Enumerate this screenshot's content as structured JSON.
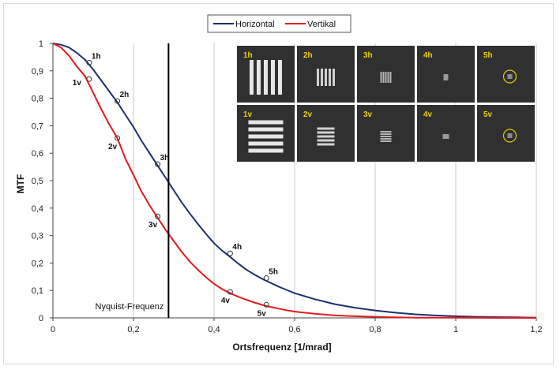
{
  "chart_data": {
    "type": "line",
    "xlabel": "Ortsfrequenz [1/mrad]",
    "ylabel": "MTF",
    "xlim": [
      0,
      1.2
    ],
    "ylim": [
      0,
      1
    ],
    "x_ticks": [
      "0",
      "0,2",
      "0,4",
      "0,6",
      "0,8",
      "1",
      "1,2"
    ],
    "y_ticks": [
      "0",
      "0,1",
      "0,2",
      "0,3",
      "0,4",
      "0,5",
      "0,6",
      "0,7",
      "0,8",
      "0,9",
      "1"
    ],
    "grid": "vertical",
    "legend_position": "top-center",
    "series": [
      {
        "name": "Horizontal",
        "color": "#1f2f6e",
        "x": [
          0,
          0.02,
          0.04,
          0.06,
          0.08,
          0.1,
          0.12,
          0.14,
          0.16,
          0.18,
          0.2,
          0.22,
          0.24,
          0.26,
          0.28,
          0.3,
          0.32,
          0.34,
          0.36,
          0.38,
          0.4,
          0.42,
          0.44,
          0.46,
          0.48,
          0.5,
          0.52,
          0.54,
          0.56,
          0.58,
          0.6,
          0.65,
          0.7,
          0.75,
          0.8,
          0.85,
          0.9,
          0.95,
          1.0,
          1.05,
          1.1,
          1.15,
          1.2
        ],
        "values": [
          1.0,
          0.995,
          0.985,
          0.965,
          0.94,
          0.905,
          0.865,
          0.825,
          0.785,
          0.74,
          0.695,
          0.645,
          0.6,
          0.555,
          0.51,
          0.465,
          0.42,
          0.38,
          0.342,
          0.306,
          0.272,
          0.245,
          0.222,
          0.198,
          0.176,
          0.158,
          0.142,
          0.128,
          0.114,
          0.102,
          0.09,
          0.068,
          0.05,
          0.037,
          0.027,
          0.019,
          0.013,
          0.009,
          0.006,
          0.004,
          0.003,
          0.002,
          0.001
        ]
      },
      {
        "name": "Vertikal",
        "color": "#e31a1c",
        "x": [
          0,
          0.02,
          0.04,
          0.06,
          0.08,
          0.1,
          0.12,
          0.14,
          0.16,
          0.18,
          0.2,
          0.22,
          0.24,
          0.26,
          0.28,
          0.3,
          0.32,
          0.34,
          0.36,
          0.38,
          0.4,
          0.42,
          0.44,
          0.46,
          0.48,
          0.5,
          0.52,
          0.54,
          0.56,
          0.58,
          0.6,
          0.65,
          0.7,
          0.75,
          0.8,
          0.85,
          0.9,
          1.0,
          1.1,
          1.2
        ],
        "values": [
          1.0,
          0.985,
          0.955,
          0.915,
          0.88,
          0.82,
          0.76,
          0.705,
          0.655,
          0.58,
          0.52,
          0.46,
          0.41,
          0.365,
          0.32,
          0.28,
          0.24,
          0.205,
          0.175,
          0.148,
          0.124,
          0.105,
          0.09,
          0.077,
          0.066,
          0.056,
          0.047,
          0.04,
          0.034,
          0.028,
          0.023,
          0.015,
          0.009,
          0.006,
          0.004,
          0.002,
          0.001,
          0.001,
          0.0,
          0.0
        ]
      }
    ],
    "markers": [
      {
        "label": "1h",
        "series": "Horizontal",
        "x": 0.09,
        "y": 0.93
      },
      {
        "label": "2h",
        "series": "Horizontal",
        "x": 0.16,
        "y": 0.79
      },
      {
        "label": "3h",
        "series": "Horizontal",
        "x": 0.26,
        "y": 0.56
      },
      {
        "label": "4h",
        "series": "Horizontal",
        "x": 0.44,
        "y": 0.235
      },
      {
        "label": "5h",
        "series": "Horizontal",
        "x": 0.53,
        "y": 0.145
      },
      {
        "label": "1v",
        "series": "Vertikal",
        "x": 0.09,
        "y": 0.87
      },
      {
        "label": "2v",
        "series": "Vertikal",
        "x": 0.16,
        "y": 0.655
      },
      {
        "label": "3v",
        "series": "Vertikal",
        "x": 0.26,
        "y": 0.37
      },
      {
        "label": "4v",
        "series": "Vertikal",
        "x": 0.44,
        "y": 0.095
      },
      {
        "label": "5v",
        "series": "Vertikal",
        "x": 0.53,
        "y": 0.048
      }
    ],
    "vertical_line": {
      "x": 0.287,
      "label": "Nyquist-Frequenz"
    },
    "thumbnails": {
      "row_h": [
        {
          "label": "1h",
          "bars": 5,
          "orientation": "vertical",
          "size": "large"
        },
        {
          "label": "2h",
          "bars": 5,
          "orientation": "vertical",
          "size": "medium"
        },
        {
          "label": "3h",
          "bars": 5,
          "orientation": "vertical",
          "size": "small"
        },
        {
          "label": "4h",
          "bars": 3,
          "orientation": "vertical",
          "size": "tiny"
        },
        {
          "label": "5h",
          "bars": 1,
          "orientation": "vertical",
          "size": "circled"
        }
      ],
      "row_v": [
        {
          "label": "1v",
          "bars": 5,
          "orientation": "horizontal",
          "size": "large"
        },
        {
          "label": "2v",
          "bars": 5,
          "orientation": "horizontal",
          "size": "medium"
        },
        {
          "label": "3v",
          "bars": 5,
          "orientation": "horizontal",
          "size": "small"
        },
        {
          "label": "4v",
          "bars": 3,
          "orientation": "horizontal",
          "size": "tiny"
        },
        {
          "label": "5v",
          "bars": 1,
          "orientation": "horizontal",
          "size": "circled"
        }
      ]
    }
  }
}
